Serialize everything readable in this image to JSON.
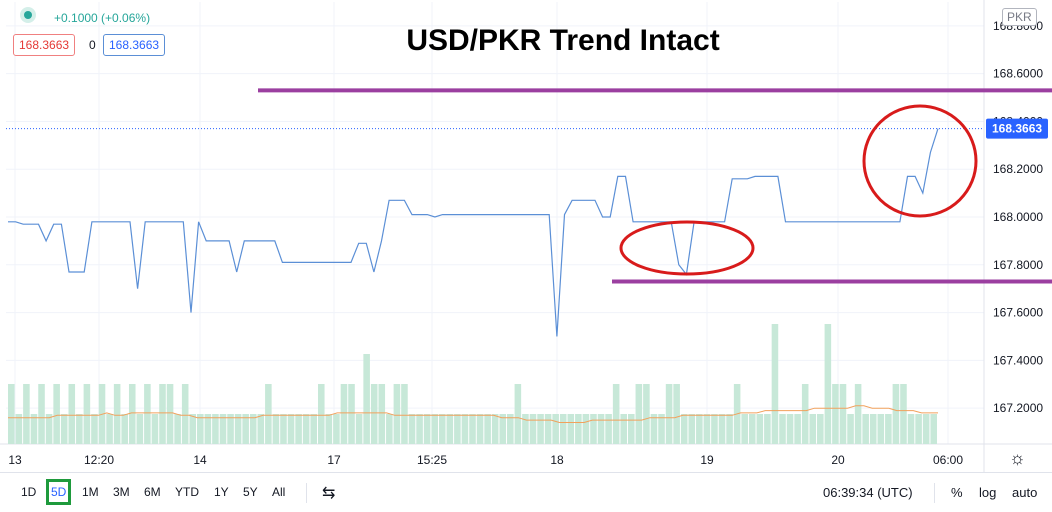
{
  "header": {
    "change": "+0.1000 (+0.06%)",
    "bid": "168.3663",
    "spread": "0",
    "ask": "168.3663",
    "currency_badge": "PKR"
  },
  "chart_data": {
    "type": "line",
    "title": "USD/PKR Trend Intact",
    "ylim": [
      167.05,
      168.9
    ],
    "y_ticks": [
      167.2,
      167.4,
      167.6,
      167.8,
      168.0,
      168.2,
      168.4,
      168.6,
      168.8
    ],
    "y_tick_labels": [
      "167.2000",
      "167.4000",
      "167.6000",
      "167.8000",
      "168.0000",
      "168.2000",
      "168.4000",
      "168.6000",
      "168.8000"
    ],
    "last_price_label": "168.3663",
    "x_tick_labels": [
      "13",
      "12:20",
      "14",
      "17",
      "15:25",
      "18",
      "19",
      "20",
      "06:00"
    ],
    "grid": true,
    "series": [
      {
        "values": [
          167.98,
          167.98,
          167.97,
          167.97,
          167.97,
          167.9,
          167.97,
          167.97,
          167.77,
          167.77,
          167.77,
          167.98,
          167.98,
          167.98,
          167.98,
          167.98,
          167.98,
          167.7,
          167.98,
          167.98,
          167.98,
          167.98,
          167.98,
          167.98,
          167.6,
          167.98,
          167.9,
          167.9,
          167.9,
          167.9,
          167.77,
          167.9,
          167.9,
          167.9,
          167.9,
          167.9,
          167.81,
          167.81,
          167.81,
          167.81,
          167.81,
          167.81,
          167.81,
          167.81,
          167.81,
          167.81,
          167.89,
          167.89,
          167.77,
          167.9,
          168.07,
          168.07,
          168.07,
          168.01,
          168.01,
          168.01,
          168.0,
          168.01,
          168.01,
          168.01,
          168.01,
          168.01,
          168.01,
          168.01,
          168.01,
          168.01,
          168.01,
          168.01,
          168.01,
          168.01,
          168.01,
          168.01,
          167.5,
          168.01,
          168.07,
          168.07,
          168.07,
          168.07,
          168.0,
          168.0,
          168.17,
          168.17,
          167.98,
          167.98,
          167.98,
          167.98,
          167.98,
          167.98,
          167.8,
          167.76,
          167.98,
          167.98,
          167.98,
          167.98,
          167.98,
          168.16,
          168.16,
          168.16,
          168.17,
          168.17,
          168.17,
          168.17,
          167.98,
          167.98,
          167.98,
          167.98,
          167.98,
          167.98,
          167.98,
          167.98,
          167.98,
          167.98,
          167.98,
          167.98,
          167.98,
          167.98,
          167.98,
          167.98,
          168.17,
          168.17,
          168.1,
          168.27,
          168.37
        ],
        "color": "#5b8fd6"
      }
    ],
    "volume": [
      2,
      1,
      2,
      1,
      2,
      1,
      2,
      1,
      2,
      1,
      2,
      1,
      2,
      1,
      2,
      1,
      2,
      1,
      2,
      1,
      2,
      2,
      1,
      2,
      1,
      1,
      1,
      1,
      1,
      1,
      1,
      1,
      1,
      1,
      2,
      1,
      1,
      1,
      1,
      1,
      1,
      2,
      1,
      1,
      2,
      2,
      1,
      3,
      2,
      2,
      1,
      2,
      2,
      1,
      1,
      1,
      1,
      1,
      1,
      1,
      1,
      1,
      1,
      1,
      1,
      1,
      1,
      2,
      1,
      1,
      1,
      1,
      1,
      1,
      1,
      1,
      1,
      1,
      1,
      1,
      2,
      1,
      1,
      2,
      2,
      1,
      1,
      2,
      2,
      1,
      1,
      1,
      1,
      1,
      1,
      1,
      2,
      1,
      1,
      1,
      1,
      4,
      1,
      1,
      1,
      2,
      1,
      1,
      4,
      2,
      2,
      1,
      2,
      1,
      1,
      1,
      1,
      2,
      2,
      1,
      1,
      1,
      1
    ],
    "moving_average": [
      167.16,
      167.16,
      167.16,
      167.16,
      167.16,
      167.16,
      167.17,
      167.17,
      167.17,
      167.17,
      167.17,
      167.17,
      167.18,
      167.17,
      167.17,
      167.18,
      167.18,
      167.18,
      167.18,
      167.18,
      167.18,
      167.17,
      167.17,
      167.16,
      167.16,
      167.16,
      167.16,
      167.16,
      167.16,
      167.16,
      167.16,
      167.17,
      167.17,
      167.17,
      167.17,
      167.17,
      167.17,
      167.17,
      167.17,
      167.17,
      167.18,
      167.18,
      167.18,
      167.18,
      167.18,
      167.18,
      167.18,
      167.17,
      167.17,
      167.17,
      167.17,
      167.17,
      167.17,
      167.17,
      167.17,
      167.17,
      167.17,
      167.17,
      167.17,
      167.17,
      167.16,
      167.16,
      167.16,
      167.15,
      167.15,
      167.15,
      167.15,
      167.14,
      167.14,
      167.14,
      167.14,
      167.15,
      167.15,
      167.15,
      167.15,
      167.15,
      167.15,
      167.15,
      167.16,
      167.16,
      167.16,
      167.16,
      167.17,
      167.17,
      167.17,
      167.17,
      167.17,
      167.17,
      167.17,
      167.18,
      167.18,
      167.18,
      167.19,
      167.19,
      167.19,
      167.19,
      167.19,
      167.19,
      167.2,
      167.2,
      167.2,
      167.2,
      167.2,
      167.21,
      167.21,
      167.2,
      167.2,
      167.2,
      167.19,
      167.19,
      167.19,
      167.18,
      167.18,
      167.18
    ],
    "annotations": {
      "upper_line_value": 168.53,
      "lower_line_value": 167.73,
      "line_color": "#9b3fa0",
      "circle_color": "#d81b1b"
    }
  },
  "bottom": {
    "timeframes": [
      "1D",
      "5D",
      "1M",
      "3M",
      "6M",
      "YTD",
      "1Y",
      "5Y",
      "All"
    ],
    "active_timeframe": "5D",
    "time": "06:39:34 (UTC)",
    "percent": "%",
    "log": "log",
    "auto": "auto"
  },
  "colors": {
    "price_line": "#5b8fd6",
    "volume": "#c7e8d8",
    "ma": "#f2a15c",
    "bid_border": "#f08080",
    "ask_border": "#5b8fd6",
    "price_badge": "#2962ff",
    "active_timeframe_outline": "#1e9a3c"
  }
}
